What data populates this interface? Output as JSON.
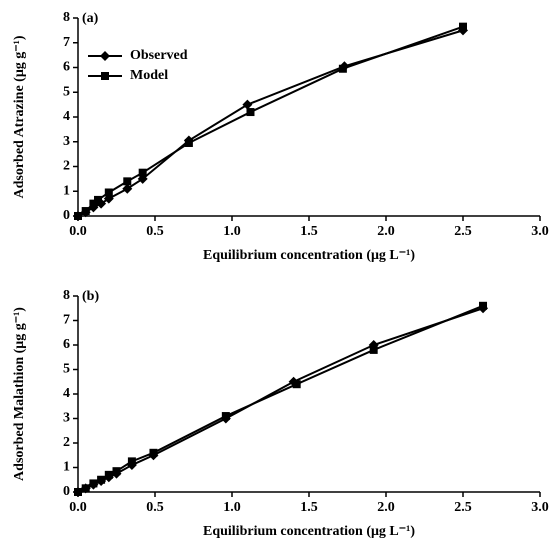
{
  "chart_data": [
    {
      "type": "line",
      "annotation": "(a)",
      "x_label": "Equilibrium concentration (μg L⁻¹)",
      "y_label": "Adsorbed Atrazine (μg g⁻¹)",
      "xlim": [
        0,
        3
      ],
      "ylim": [
        0,
        8
      ],
      "xticks": [
        {
          "value": 0,
          "label": "0.0"
        },
        0.5,
        {
          "value": 1,
          "label": "1.0"
        },
        1.5,
        {
          "value": 2,
          "label": "2.0"
        },
        2.5,
        {
          "value": 3,
          "label": "3.0"
        }
      ],
      "yticks": [
        0,
        1,
        2,
        3,
        4,
        5,
        6,
        7,
        8
      ],
      "legend": "upper left",
      "series": [
        {
          "name": "Observed",
          "color": "#000000",
          "marker": "diamond",
          "x": [
            0,
            0.05,
            0.1,
            0.15,
            0.2,
            0.32,
            0.42,
            0.72,
            1.1,
            1.73,
            2.5
          ],
          "values": [
            0,
            0.15,
            0.35,
            0.5,
            0.7,
            1.1,
            1.5,
            3.05,
            4.5,
            6.05,
            7.5
          ]
        },
        {
          "name": "Model",
          "color": "#000000",
          "marker": "square",
          "x": [
            0,
            0.05,
            0.1,
            0.13,
            0.2,
            0.32,
            0.42,
            0.72,
            1.12,
            1.72,
            2.5
          ],
          "values": [
            0,
            0.2,
            0.5,
            0.65,
            0.95,
            1.4,
            1.75,
            2.95,
            4.2,
            5.95,
            7.65
          ]
        }
      ]
    },
    {
      "type": "line",
      "annotation": "(b)",
      "x_label": "Equilibrium concentration (μg L⁻¹)",
      "y_label": "Adsorbed Malathion (μg g⁻¹)",
      "xlim": [
        0,
        3
      ],
      "ylim": [
        0,
        8
      ],
      "xticks": [
        {
          "value": 0,
          "label": "0.0"
        },
        0.5,
        {
          "value": 1,
          "label": "1.0"
        },
        1.5,
        {
          "value": 2,
          "label": "2.0"
        },
        2.5,
        {
          "value": 3,
          "label": "3.0"
        }
      ],
      "yticks": [
        0,
        1,
        2,
        3,
        4,
        5,
        6,
        7,
        8
      ],
      "series": [
        {
          "color": "#000000",
          "marker": "diamond",
          "x": [
            0,
            0.05,
            0.1,
            0.15,
            0.2,
            0.25,
            0.35,
            0.49,
            0.96,
            1.4,
            1.92,
            2.63
          ],
          "values": [
            0,
            0.15,
            0.3,
            0.45,
            0.6,
            0.75,
            1.1,
            1.5,
            3.0,
            4.5,
            6.0,
            7.5
          ]
        },
        {
          "color": "#000000",
          "marker": "square",
          "x": [
            0,
            0.05,
            0.1,
            0.15,
            0.2,
            0.25,
            0.35,
            0.49,
            0.96,
            1.42,
            1.92,
            2.63
          ],
          "values": [
            0,
            0.15,
            0.35,
            0.5,
            0.7,
            0.85,
            1.25,
            1.6,
            3.1,
            4.4,
            5.8,
            7.6
          ]
        }
      ]
    }
  ]
}
